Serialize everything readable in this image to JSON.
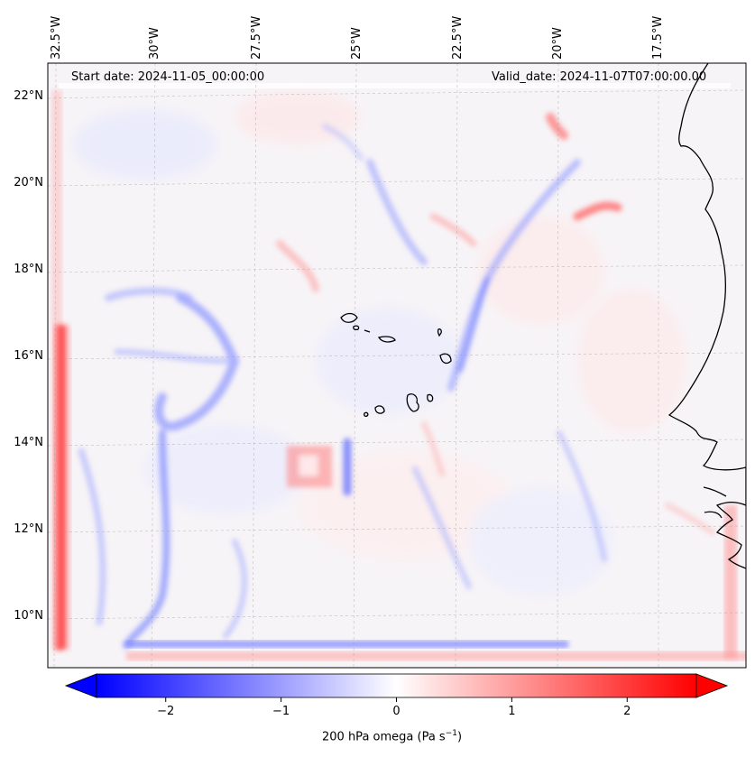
{
  "header": {
    "start_date": "Start date: 2024-11-05_00:00:00",
    "valid_date": "Valid_date: 2024-11-07T07:00:00.00"
  },
  "longitude_labels": [
    "32.5°W",
    "30°W",
    "27.5°W",
    "25°W",
    "22.5°W",
    "20°W",
    "17.5°W"
  ],
  "latitude_labels": [
    "22°N",
    "20°N",
    "18°N",
    "16°N",
    "14°N",
    "12°N",
    "10°N"
  ],
  "colorbar": {
    "label": "200 hPa omega (Pa s",
    "label_superscript": "−1",
    "label_close": ")",
    "ticks": [
      "−2",
      "−1",
      "0",
      "1",
      "2"
    ],
    "tick_values": [
      -2,
      -1,
      0,
      1,
      2
    ],
    "range": [
      -2.6,
      2.6
    ],
    "colormap": "bwr",
    "colors": {
      "negative": "#0000ff",
      "zero": "#ffffff",
      "positive": "#ff0000"
    }
  },
  "chart_data": {
    "type": "heatmap",
    "variable": "200 hPa omega (Pa s−1)",
    "lon_ticks": [
      -32.5,
      -30,
      -27.5,
      -25,
      -22.5,
      -20,
      -17.5
    ],
    "lat_ticks": [
      22,
      20,
      18,
      16,
      14,
      12,
      10
    ],
    "extent": {
      "lon": [
        -33.0,
        -15.5
      ],
      "lat": [
        8.9,
        22.7
      ]
    },
    "grid": true,
    "value_range": [
      -2.6,
      2.6
    ]
  }
}
